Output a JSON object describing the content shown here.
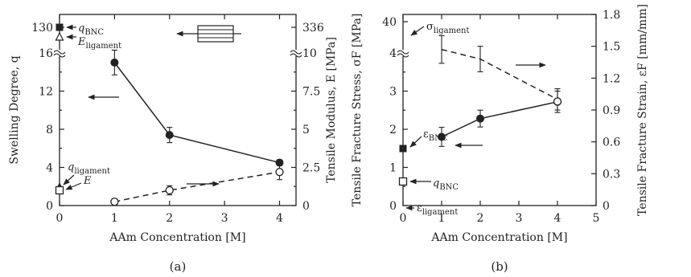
{
  "chart_data": [
    {
      "panel": "(a)",
      "type": "line",
      "xlabel": "AAm Concentration [M]",
      "ylabel_left": "Swelling Degree, q",
      "ylabel_right": "Tensile Modulus, E [MPa]",
      "x_ticks": [
        "0",
        "1",
        "2",
        "3",
        "4"
      ],
      "y_left_ticks": [
        "0",
        "4",
        "8",
        "12",
        "16",
        "130"
      ],
      "y_right_ticks": [
        "0",
        "2.5",
        "5",
        "7.5",
        "10",
        "336"
      ],
      "xlim": [
        0,
        4.3
      ],
      "ylim_left": [
        0,
        16
      ],
      "ylim_right": [
        0,
        10
      ],
      "axis_break": true,
      "series": [
        {
          "name": "q",
          "axis": "left",
          "style": "solid",
          "marker": "filled-circle",
          "x": [
            1,
            2,
            4
          ],
          "y": [
            15.0,
            7.4,
            4.5
          ],
          "err": [
            1.3,
            0.8,
            0.3
          ]
        },
        {
          "name": "E",
          "axis": "right",
          "style": "dashed",
          "marker": "open-circle",
          "x": [
            1,
            2,
            4
          ],
          "y": [
            0.25,
            1.0,
            2.2
          ],
          "err": [
            0.2,
            0.3,
            0.5
          ]
        }
      ],
      "reference_points": [
        {
          "label": "q_BNC",
          "axis": "left",
          "value": 130,
          "marker": "filled-square"
        },
        {
          "label": "E_ligament",
          "axis": "right",
          "value": 320,
          "marker": "open-triangle"
        },
        {
          "label": "q_ligament",
          "axis": "left",
          "value": 2.8,
          "marker": "filled-triangle"
        },
        {
          "label": "E",
          "axis": "right",
          "value": 0.95,
          "marker": "open-square"
        }
      ],
      "annotations": {
        "q_BNC": {
          "main": "q",
          "sub": "BNC"
        },
        "E_ligament": {
          "main": "E",
          "sub": "ligament"
        },
        "q_ligament": {
          "main": "q",
          "sub": "ligament"
        },
        "E": {
          "main": "E",
          "sub": ""
        }
      }
    },
    {
      "panel": "(b)",
      "type": "line",
      "xlabel": "AAm Concentration [M]",
      "ylabel_left": "Tensile Fracture Stress, σF [MPa]",
      "ylabel_right": "Tensile Fracture Strain, εF [mm/mm]",
      "x_ticks": [
        "0",
        "1",
        "2",
        "3",
        "4",
        "5"
      ],
      "y_left_ticks": [
        "0",
        "1",
        "2",
        "3",
        "4",
        "40"
      ],
      "y_right_ticks": [
        "0",
        "0.3",
        "0.6",
        "0.9",
        "1.2",
        "1.5",
        "1.8"
      ],
      "xlim": [
        0,
        5
      ],
      "ylim_left": [
        0,
        4
      ],
      "ylim_right": [
        0,
        1.8
      ],
      "axis_break": true,
      "series": [
        {
          "name": "σ",
          "axis": "left",
          "style": "solid",
          "marker": "filled-circle",
          "x": [
            1,
            2,
            4
          ],
          "y": [
            1.8,
            2.28,
            2.72
          ],
          "err": [
            0.25,
            0.22,
            0.28
          ]
        },
        {
          "name": "ε",
          "axis": "right",
          "style": "dashed",
          "marker": "none",
          "x": [
            1,
            2,
            4
          ],
          "y": [
            1.47,
            1.38,
            1.0
          ],
          "err": [
            0.13,
            0.12,
            0.1
          ]
        },
        {
          "name": "ε (open)",
          "axis": "right",
          "style": "none",
          "marker": "open-circle",
          "x": [
            4
          ],
          "y": [
            0.98
          ],
          "err": [
            0
          ]
        }
      ],
      "reference_points": [
        {
          "label": "σ_ligament",
          "axis": "left",
          "value": 40,
          "marker": "none"
        },
        {
          "label": "ε_BNC",
          "axis": "right",
          "value": 0.74,
          "marker": "filled-square"
        },
        {
          "label": "q_BNC",
          "axis": "left",
          "value": 1.22,
          "marker": "open-square"
        },
        {
          "label": "ε_ligament",
          "axis": "left",
          "value": 0.45,
          "marker": "none"
        }
      ],
      "annotations": {
        "sigma_ligament": {
          "main": "σ",
          "sub": "ligament"
        },
        "eps_BNC": {
          "main": "ε",
          "sub": "BNC"
        },
        "q_BNC": {
          "main": "q",
          "sub": "BNC"
        },
        "eps_ligament": {
          "main": "ε",
          "sub": "ligament"
        }
      }
    }
  ]
}
